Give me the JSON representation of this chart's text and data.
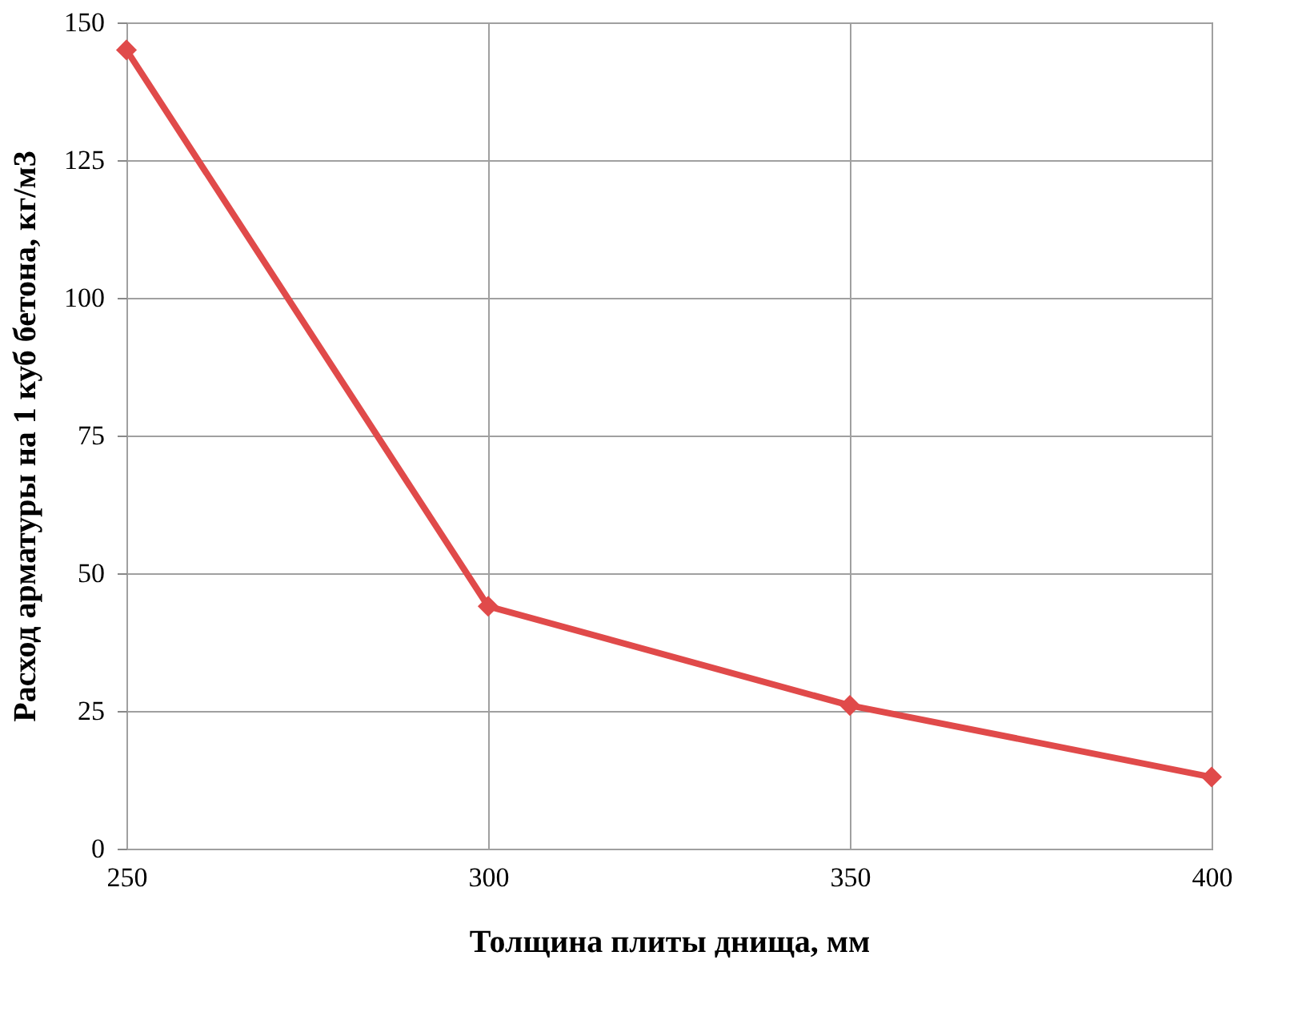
{
  "chart_data": {
    "type": "line",
    "xlabel": "Толщина плиты днища, мм",
    "ylabel": "Расход арматуры на 1 куб бетона, кг/м3",
    "x": [
      250,
      300,
      350,
      400
    ],
    "series": [
      {
        "color": "#e04a4a",
        "values": [
          145,
          44,
          26,
          13
        ]
      }
    ],
    "xlim": [
      250,
      400
    ],
    "xticks": [
      250,
      300,
      350,
      400
    ],
    "ylim": [
      0,
      150
    ],
    "yticks": [
      0,
      25,
      50,
      75,
      100,
      125,
      150
    ],
    "grid": true,
    "marker": "diamond",
    "line_style": "solid"
  }
}
